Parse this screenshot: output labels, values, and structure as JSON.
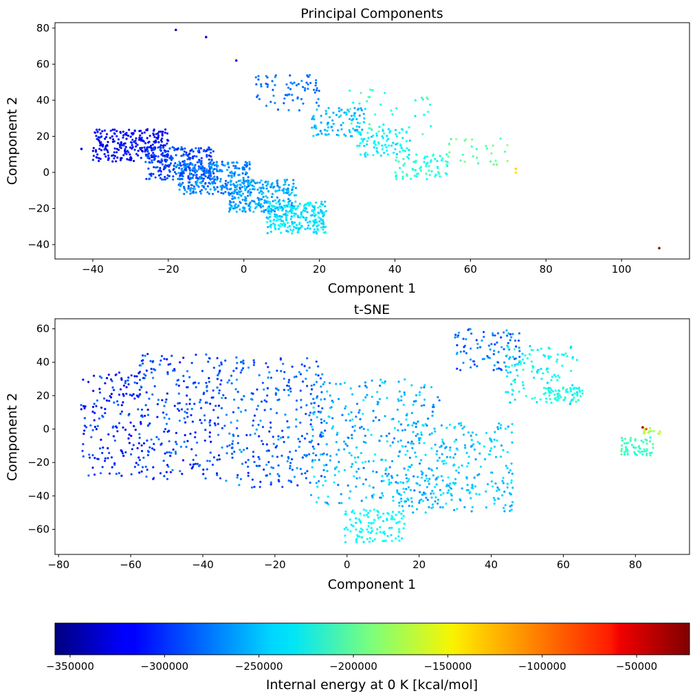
{
  "chart_data": [
    {
      "type": "scatter",
      "title": "Principal Components",
      "xlabel": "Component 1",
      "ylabel": "Component 2",
      "xlim": [
        -50,
        118
      ],
      "ylim": [
        -48,
        83
      ],
      "xticks": [
        -40,
        -20,
        0,
        20,
        40,
        60,
        80,
        100
      ],
      "yticks": [
        -40,
        -20,
        0,
        20,
        40,
        60,
        80
      ],
      "xtick_labels": [
        "−40",
        "−20",
        "0",
        "20",
        "40",
        "60",
        "80",
        "100"
      ],
      "ytick_labels": [
        "−40",
        "−20",
        "0",
        "20",
        "40",
        "60",
        "80"
      ],
      "grid": false,
      "clusters": [
        {
          "x_range": [
            -40,
            -20
          ],
          "y_range": [
            6,
            24
          ],
          "energy": [
            -330000,
            -300000
          ],
          "count": 260
        },
        {
          "x_range": [
            -26,
            -8
          ],
          "y_range": [
            -4,
            14
          ],
          "energy": [
            -305000,
            -280000
          ],
          "count": 260
        },
        {
          "x_range": [
            -18,
            2
          ],
          "y_range": [
            -12,
            6
          ],
          "energy": [
            -290000,
            -255000
          ],
          "count": 280
        },
        {
          "x_range": [
            -4,
            14
          ],
          "y_range": [
            -22,
            -4
          ],
          "energy": [
            -275000,
            -245000
          ],
          "count": 260
        },
        {
          "x_range": [
            6,
            22
          ],
          "y_range": [
            -34,
            -16
          ],
          "energy": [
            -255000,
            -225000
          ],
          "count": 240
        },
        {
          "x_range": [
            3,
            20
          ],
          "y_range": [
            34,
            54
          ],
          "energy": [
            -290000,
            -265000
          ],
          "count": 70
        },
        {
          "x_range": [
            18,
            32
          ],
          "y_range": [
            20,
            36
          ],
          "energy": [
            -265000,
            -245000
          ],
          "count": 90
        },
        {
          "x_range": [
            30,
            44
          ],
          "y_range": [
            8,
            24
          ],
          "energy": [
            -250000,
            -225000
          ],
          "count": 80
        },
        {
          "x_range": [
            40,
            54
          ],
          "y_range": [
            -4,
            10
          ],
          "energy": [
            -235000,
            -205000
          ],
          "count": 70
        },
        {
          "x_range": [
            28,
            50
          ],
          "y_range": [
            20,
            46
          ],
          "energy": [
            -240000,
            -200000
          ],
          "count": 45
        },
        {
          "x_range": [
            54,
            70
          ],
          "y_range": [
            4,
            20
          ],
          "energy": [
            -215000,
            -180000
          ],
          "count": 30
        }
      ],
      "points": [
        {
          "x": -43,
          "y": 13,
          "energy": -335000
        },
        {
          "x": -18,
          "y": 79,
          "energy": -340000
        },
        {
          "x": -10,
          "y": 75,
          "energy": -330000
        },
        {
          "x": -2,
          "y": 62,
          "energy": -310000
        },
        {
          "x": 72,
          "y": 0,
          "energy": -140000
        },
        {
          "x": 72,
          "y": 2,
          "energy": -135000
        },
        {
          "x": 110,
          "y": -42,
          "energy": -25000
        }
      ]
    },
    {
      "type": "scatter",
      "title": "t-SNE",
      "xlabel": "Component 1",
      "ylabel": "Component 2",
      "xlim": [
        -81,
        95
      ],
      "ylim": [
        -75,
        66
      ],
      "xticks": [
        -80,
        -60,
        -40,
        -20,
        0,
        20,
        40,
        60,
        80
      ],
      "yticks": [
        -60,
        -40,
        -20,
        0,
        20,
        40,
        60
      ],
      "xtick_labels": [
        "−80",
        "−60",
        "−40",
        "−20",
        "0",
        "20",
        "40",
        "60",
        "80"
      ],
      "ytick_labels": [
        "−60",
        "−40",
        "−20",
        "0",
        "20",
        "40",
        "60"
      ],
      "grid": false,
      "clusters": [
        {
          "x_range": [
            -74,
            -55
          ],
          "y_range": [
            -28,
            34
          ],
          "energy": [
            -325000,
            -280000
          ],
          "count": 170
        },
        {
          "x_range": [
            -58,
            -35
          ],
          "y_range": [
            -30,
            45
          ],
          "energy": [
            -315000,
            -270000
          ],
          "count": 230
        },
        {
          "x_range": [
            -36,
            -6
          ],
          "y_range": [
            -35,
            43
          ],
          "energy": [
            -305000,
            -260000
          ],
          "count": 300
        },
        {
          "x_range": [
            -10,
            26
          ],
          "y_range": [
            -45,
            30
          ],
          "energy": [
            -280000,
            -235000
          ],
          "count": 330
        },
        {
          "x_range": [
            14,
            46
          ],
          "y_range": [
            -50,
            5
          ],
          "energy": [
            -265000,
            -235000
          ],
          "count": 260
        },
        {
          "x_range": [
            -1,
            16
          ],
          "y_range": [
            -68,
            -48
          ],
          "energy": [
            -240000,
            -225000
          ],
          "count": 110
        },
        {
          "x_range": [
            30,
            48
          ],
          "y_range": [
            35,
            60
          ],
          "energy": [
            -300000,
            -255000
          ],
          "count": 90
        },
        {
          "x_range": [
            44,
            64
          ],
          "y_range": [
            15,
            50
          ],
          "energy": [
            -250000,
            -215000
          ],
          "count": 120
        },
        {
          "x_range": [
            55,
            66
          ],
          "y_range": [
            16,
            25
          ],
          "energy": [
            -230000,
            -215000
          ],
          "count": 60
        },
        {
          "x_range": [
            76,
            85
          ],
          "y_range": [
            -16,
            -5
          ],
          "energy": [
            -225000,
            -200000
          ],
          "count": 60
        },
        {
          "x_range": [
            82,
            87
          ],
          "y_range": [
            -3,
            1
          ],
          "energy": [
            -185000,
            -165000
          ],
          "count": 20
        }
      ],
      "points": [
        {
          "x": 82,
          "y": 1,
          "energy": -30000
        },
        {
          "x": 83,
          "y": 0,
          "energy": -90000
        }
      ]
    }
  ],
  "colorbar": {
    "label": "Internal energy at 0 K [kcal/mol]",
    "min": -358000,
    "max": -22000,
    "ticks": [
      -350000,
      -300000,
      -250000,
      -200000,
      -150000,
      -100000,
      -50000
    ],
    "tick_labels": [
      "−350000",
      "−300000",
      "−250000",
      "−200000",
      "−150000",
      "−100000",
      "−50000"
    ],
    "colormap": "jet"
  }
}
